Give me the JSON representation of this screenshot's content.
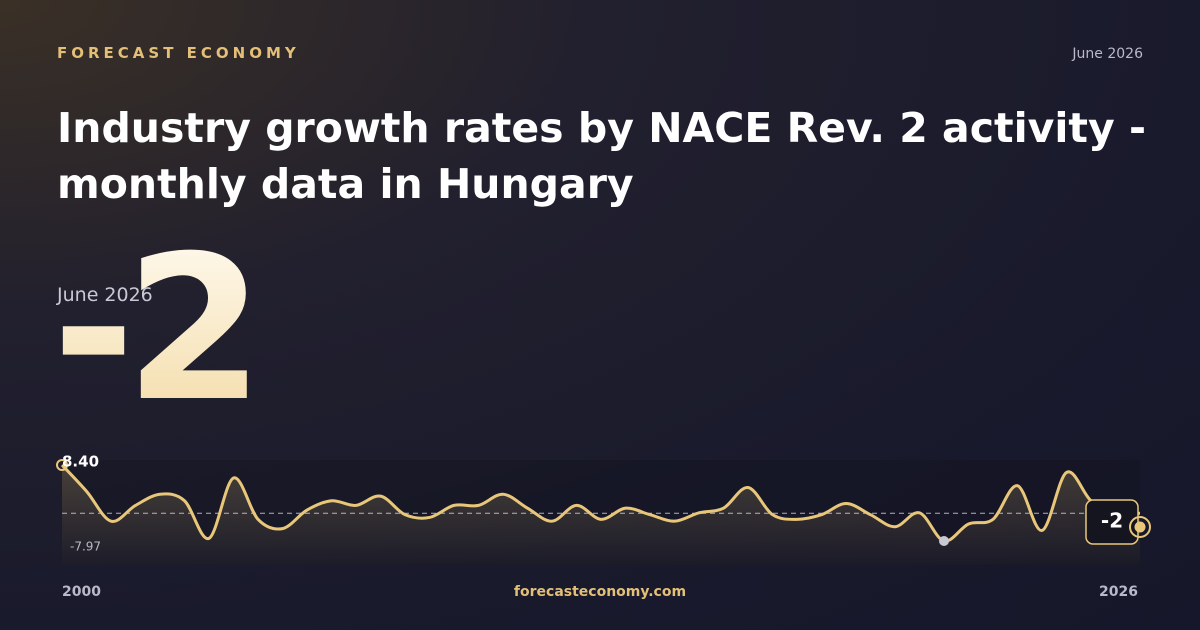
{
  "header": {
    "brand": "FORECAST ECONOMY",
    "date": "June 2026"
  },
  "title": "Industry growth rates by NACE Rev. 2 activity - monthly data in Hungary",
  "headline": {
    "label": "June 2026",
    "value": -2
  },
  "footer": {
    "site": "forecasteconomy.com"
  },
  "chart_data": {
    "type": "line",
    "x_start": "2000",
    "x_end": "2026",
    "color": "#e9c77a",
    "values": [
      8.4,
      2.74,
      -3.7,
      -0.3,
      2.1,
      0.7,
      -7.4,
      5.6,
      -3.3,
      -5.3,
      -1.3,
      0.7,
      -0.3,
      1.7,
      -2.3,
      -2.9,
      -0.3,
      -0.3,
      2.1,
      -0.9,
      -3.7,
      -0.3,
      -3.3,
      -0.9,
      -2.3,
      -3.7,
      -1.9,
      -0.9,
      3.55,
      -2.3,
      -3.3,
      -2.3,
      0.1,
      -2.3,
      -4.9,
      -1.9,
      -7.97,
      -4.3,
      -3.3,
      3.95,
      -5.7,
      6.8,
      0.7,
      -1.9,
      -2
    ],
    "max_label": {
      "value": 8.4,
      "label": "8.40"
    },
    "min_label": -7.97
  }
}
